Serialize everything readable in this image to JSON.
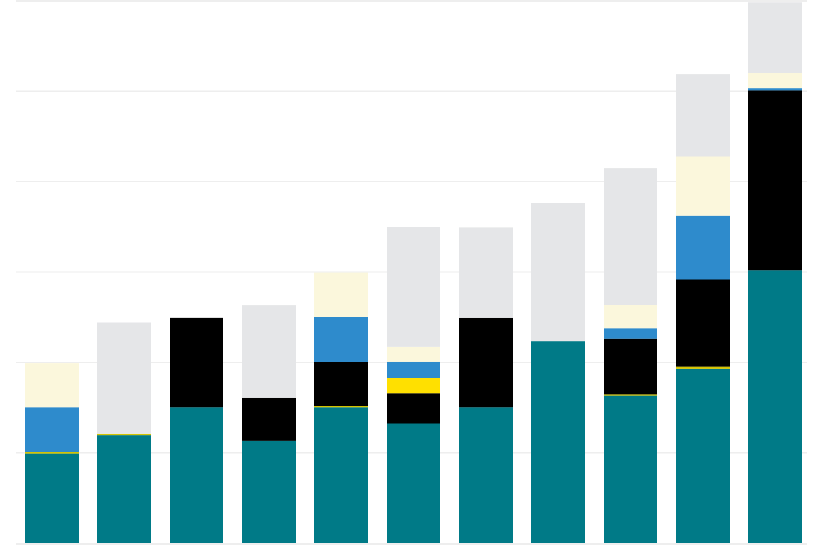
{
  "chart_data": {
    "type": "bar",
    "stacked": true,
    "categories": [
      "",
      "",
      "",
      "",
      "",
      "",
      "",
      "",
      "",
      "",
      ""
    ],
    "ylim": [
      0,
      6
    ],
    "grid": true,
    "legend": "none",
    "series": [
      {
        "color": "#007A87",
        "values": [
          0.99,
          1.19,
          1.5,
          1.13,
          1.5,
          1.32,
          1.5,
          2.23,
          1.63,
          1.93,
          3.02
        ]
      },
      {
        "color": "#D4C400",
        "values": [
          0.02,
          0.02,
          0,
          0,
          0.02,
          0,
          0,
          0,
          0.02,
          0.02,
          0
        ]
      },
      {
        "color": "#000000",
        "values": [
          0,
          0,
          0.99,
          0.48,
          0.48,
          0.34,
          0.99,
          0,
          0.61,
          0.97,
          1.99
        ]
      },
      {
        "color": "#FFE000",
        "values": [
          0,
          0,
          0,
          0,
          0,
          0.17,
          0,
          0,
          0,
          0,
          0
        ]
      },
      {
        "color": "#2E8BCC",
        "values": [
          0.49,
          0,
          0,
          0,
          0.5,
          0.18,
          0,
          0,
          0.12,
          0.7,
          0.02
        ]
      },
      {
        "color": "#FBF7DC",
        "values": [
          0.49,
          0,
          0,
          0,
          0.49,
          0.16,
          0,
          0,
          0.26,
          0.66,
          0.17
        ]
      },
      {
        "color": "#E5E6E8",
        "values": [
          0,
          1.23,
          0,
          1.02,
          0,
          1.33,
          1.0,
          1.53,
          1.51,
          0.91,
          0.78
        ]
      }
    ]
  }
}
